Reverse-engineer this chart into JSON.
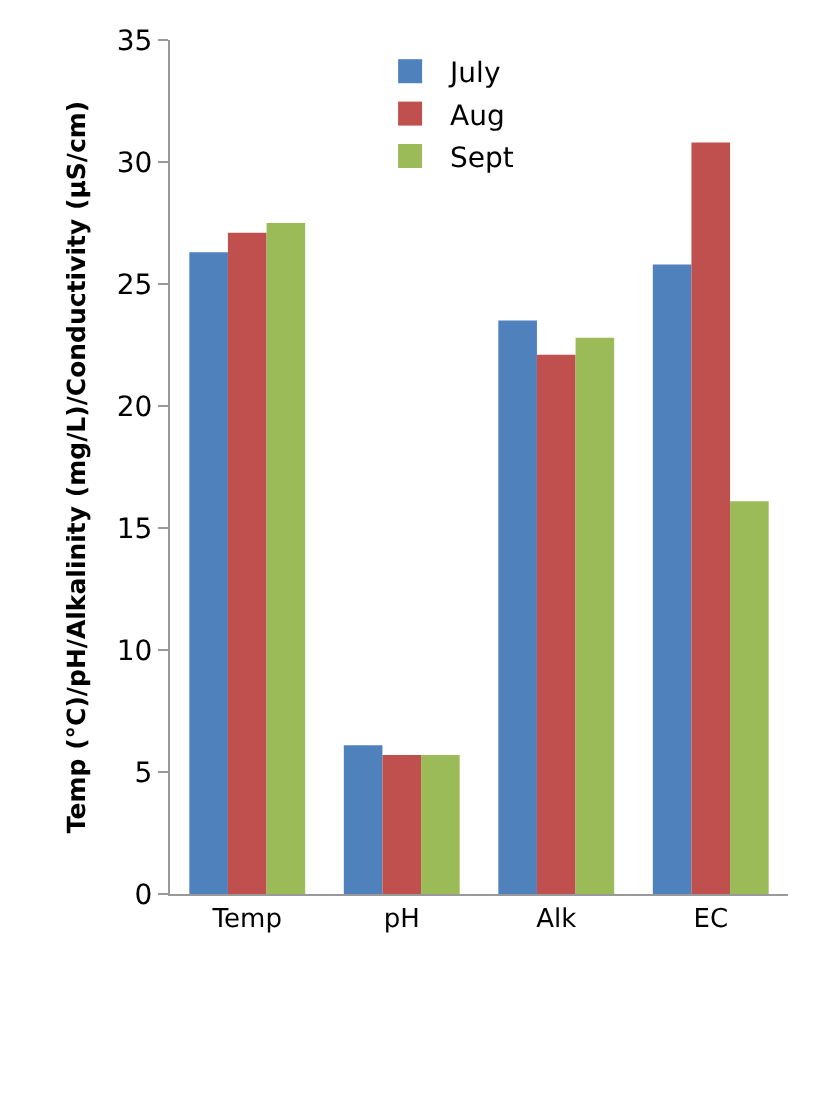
{
  "chart_data": {
    "type": "bar",
    "ylabel": "Temp (°C)/pH/Alkalinity (mg/L)/Conductivity (µS/cm)",
    "categories": [
      "Temp",
      "pH",
      "Alk",
      "EC"
    ],
    "series": [
      {
        "name": "July",
        "color": "#4f81bd",
        "values": [
          26.3,
          6.1,
          23.5,
          25.8
        ]
      },
      {
        "name": "Aug",
        "color": "#c0504d",
        "values": [
          27.1,
          5.7,
          22.1,
          30.8
        ]
      },
      {
        "name": "Sept",
        "color": "#9bbb59",
        "values": [
          27.5,
          5.7,
          22.8,
          16.1
        ]
      }
    ],
    "ylim": [
      0,
      35
    ],
    "yticks": [
      0,
      5,
      10,
      15,
      20,
      25,
      30,
      35
    ],
    "grid": false,
    "legend": "top"
  }
}
